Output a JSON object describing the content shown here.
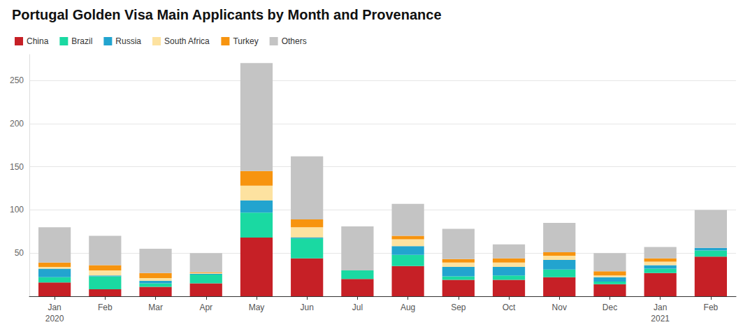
{
  "chart_data": {
    "type": "bar",
    "title": "Portugal Golden Visa Main Applicants by Month and Provenance",
    "categories": [
      "Jan\n2020",
      "Feb",
      "Mar",
      "Apr",
      "May",
      "Jun",
      "Jul",
      "Aug",
      "Sep",
      "Oct",
      "Nov",
      "Dec",
      "Jan\n2021",
      "Feb"
    ],
    "series": [
      {
        "name": "China",
        "color": "#c62026",
        "values": [
          16,
          8,
          11,
          15,
          68,
          44,
          20,
          35,
          19,
          19,
          22,
          14,
          27,
          46
        ]
      },
      {
        "name": "Brazil",
        "color": "#1ad9a2",
        "values": [
          6,
          15,
          4,
          10,
          29,
          23,
          10,
          13,
          4,
          5,
          9,
          3,
          5,
          7
        ]
      },
      {
        "name": "Russia",
        "color": "#22a4cf",
        "values": [
          10,
          1,
          3,
          1,
          14,
          1,
          0,
          10,
          11,
          10,
          11,
          5,
          4,
          3
        ]
      },
      {
        "name": "South Africa",
        "color": "#fde2a0",
        "values": [
          2,
          6,
          3,
          1,
          17,
          12,
          0,
          8,
          5,
          5,
          5,
          2,
          4,
          0
        ]
      },
      {
        "name": "Turkey",
        "color": "#f7940f",
        "values": [
          5,
          6,
          6,
          1,
          17,
          9,
          0,
          4,
          4,
          5,
          4,
          5,
          4,
          0
        ]
      },
      {
        "name": "Others",
        "color": "#c4c4c4",
        "values": [
          41,
          34,
          28,
          22,
          125,
          73,
          51,
          37,
          35,
          16,
          34,
          21,
          13,
          44
        ]
      }
    ],
    "ylim": [
      0,
      280
    ],
    "yticks": [
      50,
      100,
      150,
      200,
      250
    ],
    "stacked": true,
    "grid": true,
    "legend": "top-left"
  }
}
